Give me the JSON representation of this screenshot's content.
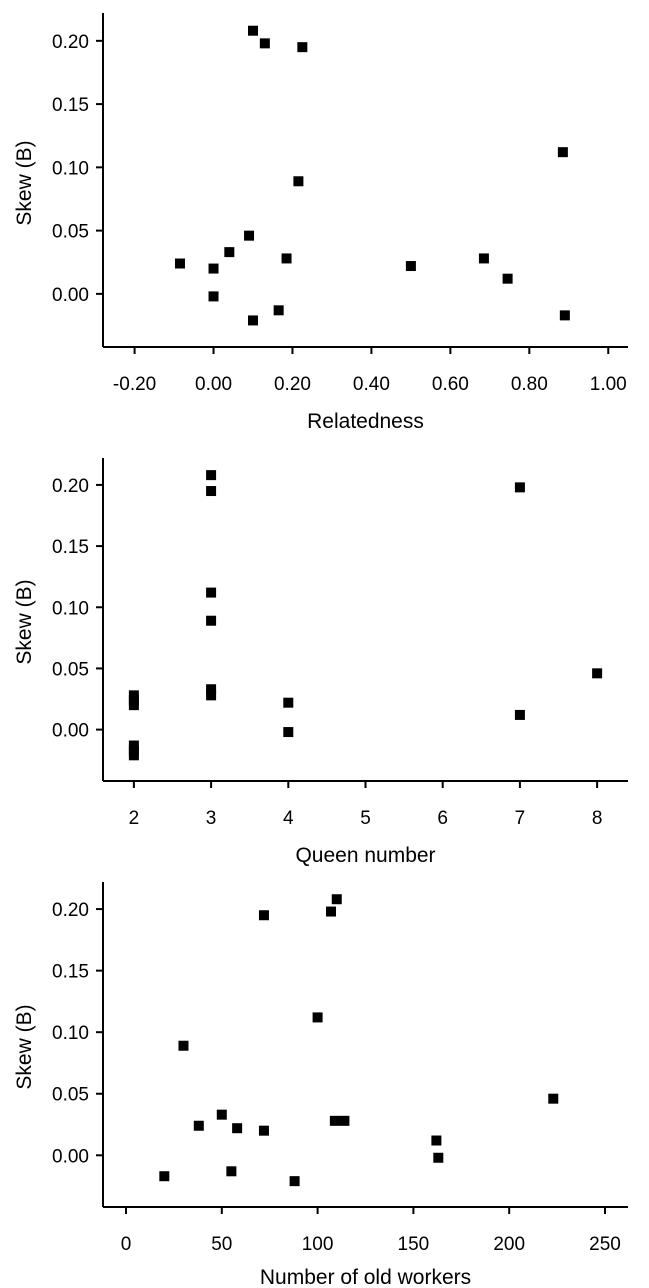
{
  "colors": {
    "marker": "#000000",
    "axis": "#000000",
    "background": "#ffffff"
  },
  "chart_data": [
    {
      "type": "scatter",
      "xlabel": "Relatedness",
      "ylabel": "Skew (B)",
      "xlim": [
        -0.28,
        1.05
      ],
      "ylim": [
        -0.042,
        0.222
      ],
      "xticks": [
        -0.2,
        0.0,
        0.2,
        0.4,
        0.6,
        0.8,
        1.0
      ],
      "xtick_labels": [
        "-0.20",
        "0.00",
        "0.20",
        "0.40",
        "0.60",
        "0.80",
        "1.00"
      ],
      "yticks": [
        0.0,
        0.05,
        0.1,
        0.15,
        0.2
      ],
      "ytick_labels": [
        "0.00",
        "0.05",
        "0.10",
        "0.15",
        "0.20"
      ],
      "grid": false,
      "legend": "none",
      "marker": "square",
      "points": [
        {
          "x": 0.1,
          "y": 0.208
        },
        {
          "x": 0.13,
          "y": 0.198
        },
        {
          "x": 0.225,
          "y": 0.195
        },
        {
          "x": 0.215,
          "y": 0.089
        },
        {
          "x": 0.885,
          "y": 0.112
        },
        {
          "x": 0.09,
          "y": 0.046
        },
        {
          "x": 0.04,
          "y": 0.033
        },
        {
          "x": 0.185,
          "y": 0.028
        },
        {
          "x": 0.685,
          "y": 0.028
        },
        {
          "x": -0.085,
          "y": 0.024
        },
        {
          "x": 0.5,
          "y": 0.022
        },
        {
          "x": 0.0,
          "y": 0.02
        },
        {
          "x": 0.745,
          "y": 0.012
        },
        {
          "x": 0.0,
          "y": -0.002
        },
        {
          "x": 0.165,
          "y": -0.013
        },
        {
          "x": 0.1,
          "y": -0.021
        },
        {
          "x": 0.89,
          "y": -0.017
        }
      ]
    },
    {
      "type": "scatter",
      "xlabel": "Queen number",
      "ylabel": "Skew (B)",
      "xlim": [
        1.6,
        8.4
      ],
      "ylim": [
        -0.042,
        0.222
      ],
      "xticks": [
        2,
        3,
        4,
        5,
        6,
        7,
        8
      ],
      "xtick_labels": [
        "2",
        "3",
        "4",
        "5",
        "6",
        "7",
        "8"
      ],
      "yticks": [
        0.0,
        0.05,
        0.1,
        0.15,
        0.2
      ],
      "ytick_labels": [
        "0.00",
        "0.05",
        "0.10",
        "0.15",
        "0.20"
      ],
      "grid": false,
      "legend": "none",
      "marker": "square",
      "points": [
        {
          "x": 3,
          "y": 0.208
        },
        {
          "x": 3,
          "y": 0.195
        },
        {
          "x": 7,
          "y": 0.198
        },
        {
          "x": 3,
          "y": 0.112
        },
        {
          "x": 3,
          "y": 0.089
        },
        {
          "x": 8,
          "y": 0.046
        },
        {
          "x": 3,
          "y": 0.033
        },
        {
          "x": 3,
          "y": 0.028
        },
        {
          "x": 2,
          "y": 0.028
        },
        {
          "x": 2,
          "y": 0.024
        },
        {
          "x": 2,
          "y": 0.02
        },
        {
          "x": 4,
          "y": 0.022
        },
        {
          "x": 7,
          "y": 0.012
        },
        {
          "x": 4,
          "y": -0.002
        },
        {
          "x": 2,
          "y": -0.013
        },
        {
          "x": 2,
          "y": -0.017
        },
        {
          "x": 2,
          "y": -0.021
        }
      ]
    },
    {
      "type": "scatter",
      "xlabel": "Number of old workers",
      "ylabel": "Skew (B)",
      "xlim": [
        -12,
        262
      ],
      "ylim": [
        -0.042,
        0.222
      ],
      "xticks": [
        0,
        50,
        100,
        150,
        200,
        250
      ],
      "xtick_labels": [
        "0",
        "50",
        "100",
        "150",
        "200",
        "250"
      ],
      "yticks": [
        0.0,
        0.05,
        0.1,
        0.15,
        0.2
      ],
      "ytick_labels": [
        "0.00",
        "0.05",
        "0.10",
        "0.15",
        "0.20"
      ],
      "grid": false,
      "legend": "none",
      "marker": "square",
      "points": [
        {
          "x": 110,
          "y": 0.208
        },
        {
          "x": 107,
          "y": 0.198
        },
        {
          "x": 72,
          "y": 0.195
        },
        {
          "x": 100,
          "y": 0.112
        },
        {
          "x": 30,
          "y": 0.089
        },
        {
          "x": 223,
          "y": 0.046
        },
        {
          "x": 50,
          "y": 0.033
        },
        {
          "x": 109,
          "y": 0.028
        },
        {
          "x": 114,
          "y": 0.028
        },
        {
          "x": 38,
          "y": 0.024
        },
        {
          "x": 58,
          "y": 0.022
        },
        {
          "x": 72,
          "y": 0.02
        },
        {
          "x": 162,
          "y": 0.012
        },
        {
          "x": 163,
          "y": -0.002
        },
        {
          "x": 55,
          "y": -0.013
        },
        {
          "x": 20,
          "y": -0.017
        },
        {
          "x": 88,
          "y": -0.021
        }
      ]
    }
  ]
}
